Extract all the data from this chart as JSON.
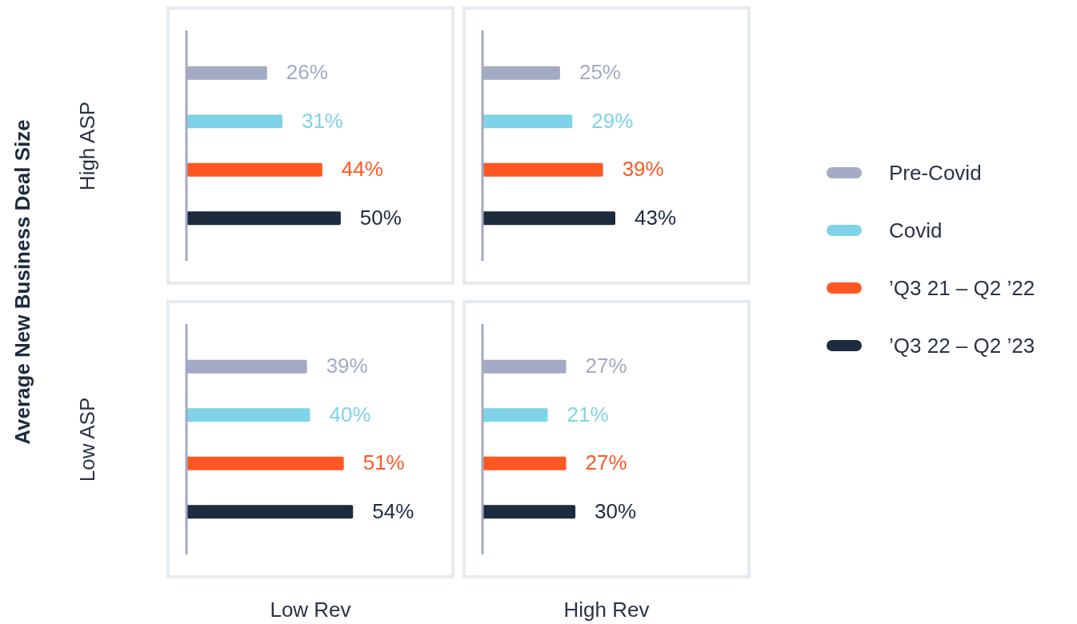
{
  "chart_data": [
    {
      "type": "bar",
      "orientation": "horizontal",
      "ylabel": "High  ASP",
      "annotations": [
        "Average New Business Deal Size"
      ],
      "categories": [
        null,
        null,
        null,
        null
      ],
      "xlim": [
        0,
        86
      ],
      "tick_labels": false,
      "values": [
        26,
        31,
        44,
        50
      ],
      "colors": [
        "#a2aac4",
        "#7fd3e8",
        "#ff5722",
        "#1c2b3e"
      ],
      "value_labels": [
        "26%",
        "31%",
        "44%",
        "50%"
      ]
    },
    {
      "type": "bar",
      "orientation": "horizontal",
      "annotations": [
        "Pre-Covid",
        "Covid",
        "’Q3 21 – Q2 ’22",
        "’Q3 22 – Q2 ’23"
      ],
      "categories": [
        null,
        null,
        null,
        null
      ],
      "xlim": [
        0,
        86
      ],
      "tick_labels": false,
      "values": [
        25,
        29,
        39,
        43
      ],
      "colors": [
        "#a2aac4",
        "#7fd3e8",
        "#ff5722",
        "#1c2b3e"
      ],
      "value_labels": [
        "25%",
        "29%",
        "39%",
        "43%"
      ]
    },
    {
      "type": "bar",
      "orientation": "horizontal",
      "ylabel": "Low  ASP",
      "xlabel": "Low Rev",
      "categories": [
        null,
        null,
        null,
        null
      ],
      "xlim": [
        0,
        86
      ],
      "tick_labels": false,
      "values": [
        39,
        40,
        51,
        54
      ],
      "colors": [
        "#a2aac4",
        "#7fd3e8",
        "#ff5722",
        "#1c2b3e"
      ],
      "value_labels": [
        "39%",
        "40%",
        "51%",
        "54%"
      ]
    },
    {
      "type": "bar",
      "orientation": "horizontal",
      "xlabel": "High Rev",
      "categories": [
        null,
        null,
        null,
        null
      ],
      "xlim": [
        0,
        86
      ],
      "tick_labels": false,
      "values": [
        27,
        21,
        27,
        30
      ],
      "colors": [
        "#a2aac4",
        "#7fd3e8",
        "#ff5722",
        "#1c2b3e"
      ],
      "value_labels": [
        "27%",
        "21%",
        "27%",
        "30%"
      ]
    }
  ]
}
